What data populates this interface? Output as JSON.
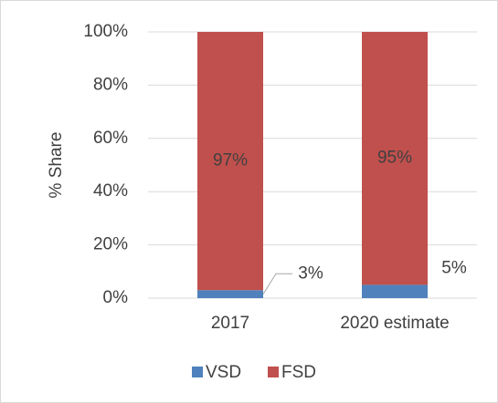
{
  "chart_data": {
    "type": "stacked_bar",
    "y_label": "% Share",
    "categories": [
      "2017",
      "2020 estimate"
    ],
    "series": [
      {
        "name": "VSD",
        "color": "#4f81bd",
        "values": [
          3,
          5
        ],
        "value_labels": [
          "3%",
          "5%"
        ]
      },
      {
        "name": "FSD",
        "color": "#c0504d",
        "values": [
          97,
          95
        ],
        "value_labels": [
          "97%",
          "95%"
        ]
      }
    ],
    "ylim": [
      0,
      100
    ],
    "yticks": [
      {
        "value": 0,
        "label": "0%"
      },
      {
        "value": 20,
        "label": "20%"
      },
      {
        "value": 40,
        "label": "40%"
      },
      {
        "value": 60,
        "label": "60%"
      },
      {
        "value": 80,
        "label": "80%"
      },
      {
        "value": 100,
        "label": "100%"
      }
    ],
    "grid": true,
    "legend": "bottom"
  }
}
